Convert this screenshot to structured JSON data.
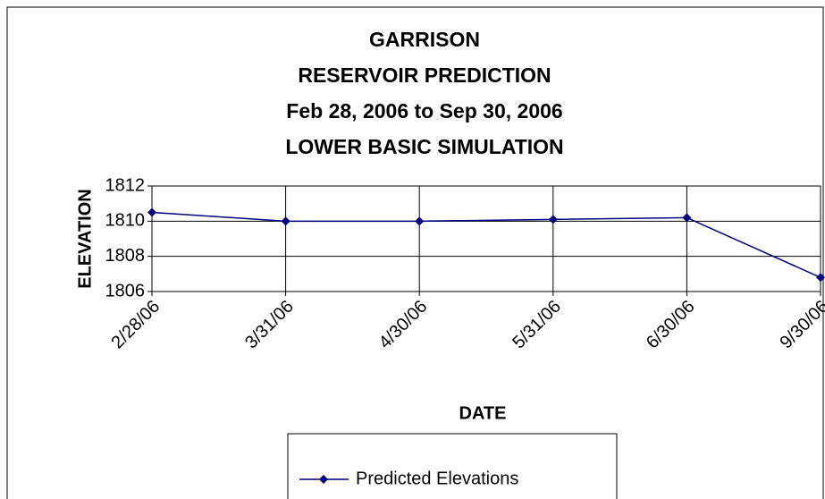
{
  "chart_data": {
    "type": "line",
    "title": [
      "GARRISON",
      "RESERVOIR PREDICTION",
      "Feb 28, 2006 to Sep 30, 2006",
      "LOWER BASIC SIMULATION"
    ],
    "x_label": "DATE",
    "y_label": "ELEVATION",
    "categories": [
      "2/28/06",
      "3/31/06",
      "4/30/06",
      "5/31/06",
      "6/30/06",
      "9/30/06"
    ],
    "series": [
      {
        "name": "Predicted Elevations",
        "color": "#000080",
        "values": [
          1810.5,
          1810.0,
          1810.0,
          1810.1,
          1810.2,
          1806.8
        ]
      }
    ],
    "ylim": [
      1806,
      1812
    ],
    "yticks": [
      1806,
      1808,
      1810,
      1812
    ],
    "grid": true,
    "legend": "bottom"
  }
}
